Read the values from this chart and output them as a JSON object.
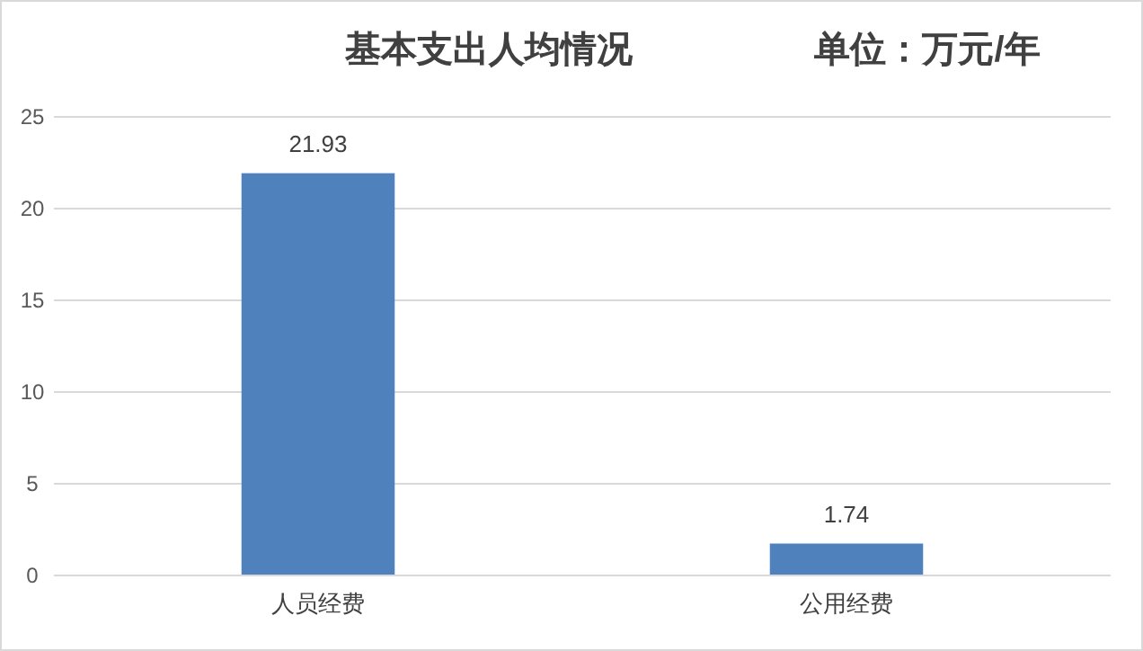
{
  "chart_data": {
    "type": "bar",
    "title": "基本支出人均情况",
    "subtitle": "单位：万元/年",
    "categories": [
      "人员经费",
      "公用经费"
    ],
    "values": [
      21.93,
      1.74
    ],
    "color": "#4f81bd",
    "ylim": [
      0,
      25
    ],
    "yticks": [
      0,
      5,
      10,
      15,
      20,
      25
    ],
    "grid": "y",
    "data_labels": true
  }
}
